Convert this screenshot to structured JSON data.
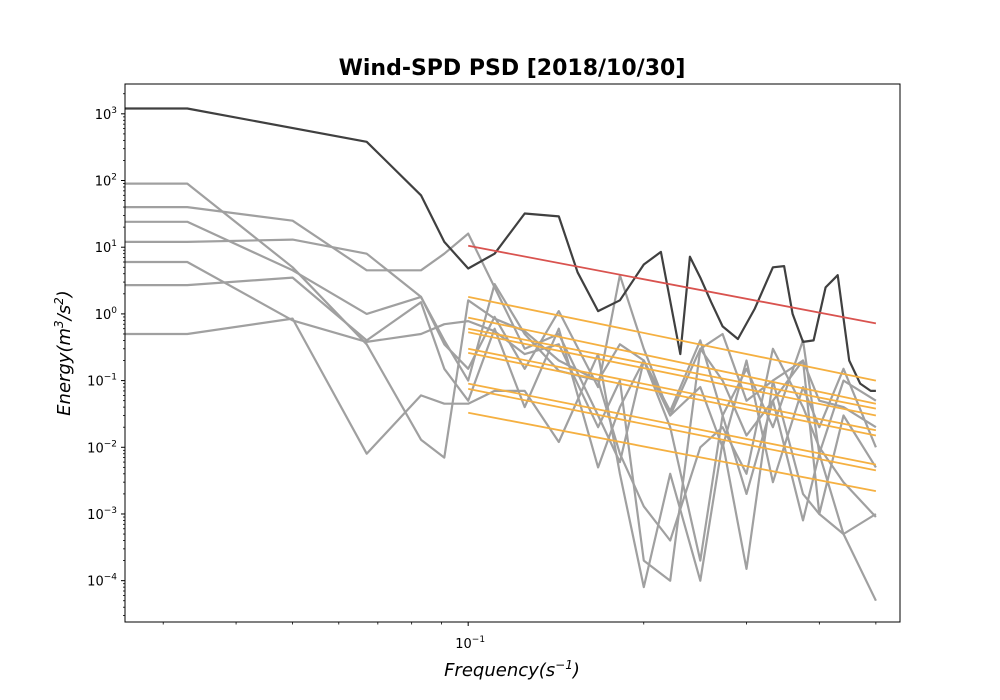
{
  "chart_data": {
    "type": "line",
    "title": "Wind-SPD PSD [2018/10/30]",
    "xlabel": {
      "base": "Frequency(s",
      "exp": "−1",
      "tail": ")"
    },
    "ylabel": {
      "base": "Energy(m",
      "exp1": "3",
      "mid": "/s",
      "exp2": "2",
      "tail": ")"
    },
    "xscale": "log",
    "yscale": "log",
    "xlim": [
      0.0258,
      0.55
    ],
    "ylim": [
      2.4e-05,
      2800
    ],
    "xticks": [
      {
        "value": 0.1,
        "base": "10",
        "exp": "−1"
      }
    ],
    "yticks": [
      {
        "value": 1000,
        "base": "10",
        "exp": "3"
      },
      {
        "value": 100,
        "base": "10",
        "exp": "2"
      },
      {
        "value": 10,
        "base": "10",
        "exp": "1"
      },
      {
        "value": 1,
        "base": "10",
        "exp": "0"
      },
      {
        "value": 0.1,
        "base": "10",
        "exp": "−1"
      },
      {
        "value": 0.01,
        "base": "10",
        "exp": "−2"
      },
      {
        "value": 0.001,
        "base": "10",
        "exp": "−3"
      },
      {
        "value": 0.0001,
        "base": "10",
        "exp": "−4"
      }
    ],
    "grid": false,
    "legend": "none",
    "colors": {
      "main": "#404040",
      "others": "#a0a0a0",
      "fit_main": "#d9534f",
      "fit_others": "#f5b041"
    },
    "series": [
      {
        "role": "main",
        "x": [
          0.025,
          0.033,
          0.067,
          0.083,
          0.091,
          0.1,
          0.111,
          0.125,
          0.143,
          0.154,
          0.167,
          0.182,
          0.2,
          0.214,
          0.231,
          0.24,
          0.25,
          0.261,
          0.273,
          0.29,
          0.31,
          0.333,
          0.348,
          0.36,
          0.375,
          0.391,
          0.41,
          0.43,
          0.45,
          0.47,
          0.49,
          0.5
        ],
        "y": [
          1200,
          1200,
          380,
          60,
          12,
          4.8,
          8,
          32,
          29,
          4.2,
          1.1,
          1.6,
          5.5,
          8.5,
          0.25,
          7.2,
          3.5,
          1.5,
          0.65,
          0.42,
          1.2,
          5,
          5.2,
          1,
          0.38,
          0.4,
          2.5,
          3.8,
          0.2,
          0.09,
          0.07,
          0.07
        ]
      },
      {
        "role": "other",
        "x": [
          0.025,
          0.033,
          0.05,
          0.067,
          0.083,
          0.091,
          0.1,
          0.111,
          0.125,
          0.143,
          0.167,
          0.182,
          0.2,
          0.222,
          0.25,
          0.273,
          0.3,
          0.333,
          0.375,
          0.4,
          0.44,
          0.5
        ],
        "y": [
          90,
          90,
          5,
          0.35,
          0.013,
          0.007,
          1.6,
          0.85,
          0.55,
          0.2,
          0.1,
          0.35,
          0.2,
          0.03,
          0.3,
          0.5,
          0.05,
          0.1,
          0.2,
          0.05,
          0.04,
          0.02
        ]
      },
      {
        "role": "other",
        "x": [
          0.025,
          0.033,
          0.05,
          0.067,
          0.083,
          0.091,
          0.1,
          0.111,
          0.125,
          0.143,
          0.167,
          0.182,
          0.2,
          0.222,
          0.25,
          0.273,
          0.3,
          0.333,
          0.375,
          0.4,
          0.44,
          0.5
        ],
        "y": [
          40,
          40,
          25,
          4.5,
          4.5,
          8,
          16,
          2.5,
          0.3,
          0.5,
          0.03,
          0.006,
          0.2,
          0.035,
          0.4,
          0.03,
          0.15,
          0.02,
          0.4,
          0.008,
          0.1,
          0.05
        ]
      },
      {
        "role": "other",
        "x": [
          0.025,
          0.033,
          0.05,
          0.067,
          0.083,
          0.091,
          0.1,
          0.111,
          0.125,
          0.143,
          0.167,
          0.182,
          0.2,
          0.222,
          0.25,
          0.273,
          0.3,
          0.333,
          0.375,
          0.4,
          0.44,
          0.5
        ],
        "y": [
          24,
          24,
          4.5,
          1,
          1.8,
          0.35,
          0.15,
          0.9,
          0.15,
          1.1,
          0.08,
          3.8,
          0.3,
          0.03,
          0.08,
          0.01,
          0.2,
          0.003,
          0.08,
          0.02,
          0.15,
          0.01
        ]
      },
      {
        "role": "other",
        "x": [
          0.025,
          0.033,
          0.05,
          0.067,
          0.083,
          0.091,
          0.1,
          0.111,
          0.125,
          0.143,
          0.167,
          0.182,
          0.2,
          0.222,
          0.25,
          0.273,
          0.3,
          0.333,
          0.375,
          0.4,
          0.44,
          0.5
        ],
        "y": [
          12,
          12,
          13,
          8,
          1.8,
          0.4,
          0.1,
          2.8,
          0.5,
          0.14,
          0.1,
          0.008,
          0.0013,
          0.0004,
          0.01,
          0.02,
          0.004,
          0.3,
          0.04,
          0.01,
          0.003,
          0.0009
        ]
      },
      {
        "role": "other",
        "x": [
          0.025,
          0.033,
          0.05,
          0.067,
          0.083,
          0.091,
          0.1,
          0.111,
          0.125,
          0.143,
          0.167,
          0.182,
          0.2,
          0.222,
          0.25,
          0.273,
          0.3,
          0.333,
          0.375,
          0.4,
          0.44,
          0.5
        ],
        "y": [
          6,
          6,
          0.8,
          0.38,
          0.5,
          0.7,
          0.78,
          0.55,
          0.25,
          0.35,
          0.02,
          0.1,
          0.0002,
          0.0001,
          0.3,
          0.1,
          0.015,
          0.05,
          0.0008,
          0.008,
          0.0005,
          0.001
        ]
      },
      {
        "role": "other",
        "x": [
          0.025,
          0.033,
          0.05,
          0.067,
          0.083,
          0.091,
          0.1,
          0.111,
          0.125,
          0.143,
          0.167,
          0.182,
          0.2,
          0.222,
          0.25,
          0.273,
          0.3,
          0.333,
          0.375,
          0.4,
          0.44,
          0.5
        ],
        "y": [
          2.7,
          2.7,
          3.5,
          0.4,
          1.5,
          0.15,
          0.05,
          0.6,
          0.04,
          0.6,
          0.005,
          0.04,
          0.2,
          0.02,
          0.0002,
          0.03,
          0.002,
          0.05,
          0.2,
          0.001,
          0.03,
          0.005
        ]
      },
      {
        "role": "other",
        "x": [
          0.025,
          0.033,
          0.05,
          0.067,
          0.083,
          0.091,
          0.1,
          0.111,
          0.125,
          0.143,
          0.167,
          0.182,
          0.2,
          0.222,
          0.25,
          0.273,
          0.3,
          0.333,
          0.375,
          0.4,
          0.44,
          0.5
        ],
        "y": [
          0.5,
          0.5,
          0.85,
          0.008,
          0.06,
          0.045,
          0.045,
          0.07,
          0.07,
          0.012,
          0.25,
          0.004,
          8e-05,
          0.004,
          0.0001,
          0.012,
          0.00015,
          0.1,
          0.002,
          0.001,
          0.0005,
          5e-05
        ]
      }
    ],
    "fits": [
      {
        "role": "main",
        "x": [
          0.1,
          0.5
        ],
        "y": [
          10.5,
          0.72
        ]
      },
      {
        "role": "other",
        "x": [
          0.1,
          0.5
        ],
        "y": [
          1.8,
          0.1
        ]
      },
      {
        "role": "other",
        "x": [
          0.1,
          0.5
        ],
        "y": [
          0.88,
          0.045
        ]
      },
      {
        "role": "other",
        "x": [
          0.1,
          0.5
        ],
        "y": [
          0.6,
          0.038
        ]
      },
      {
        "role": "other",
        "x": [
          0.1,
          0.5
        ],
        "y": [
          0.53,
          0.03
        ]
      },
      {
        "role": "other",
        "x": [
          0.1,
          0.5
        ],
        "y": [
          0.3,
          0.018
        ]
      },
      {
        "role": "other",
        "x": [
          0.1,
          0.5
        ],
        "y": [
          0.26,
          0.015
        ]
      },
      {
        "role": "other",
        "x": [
          0.1,
          0.5
        ],
        "y": [
          0.09,
          0.0055
        ]
      },
      {
        "role": "other",
        "x": [
          0.1,
          0.5
        ],
        "y": [
          0.075,
          0.0045
        ]
      },
      {
        "role": "other",
        "x": [
          0.1,
          0.5
        ],
        "y": [
          0.033,
          0.0022
        ]
      }
    ]
  }
}
